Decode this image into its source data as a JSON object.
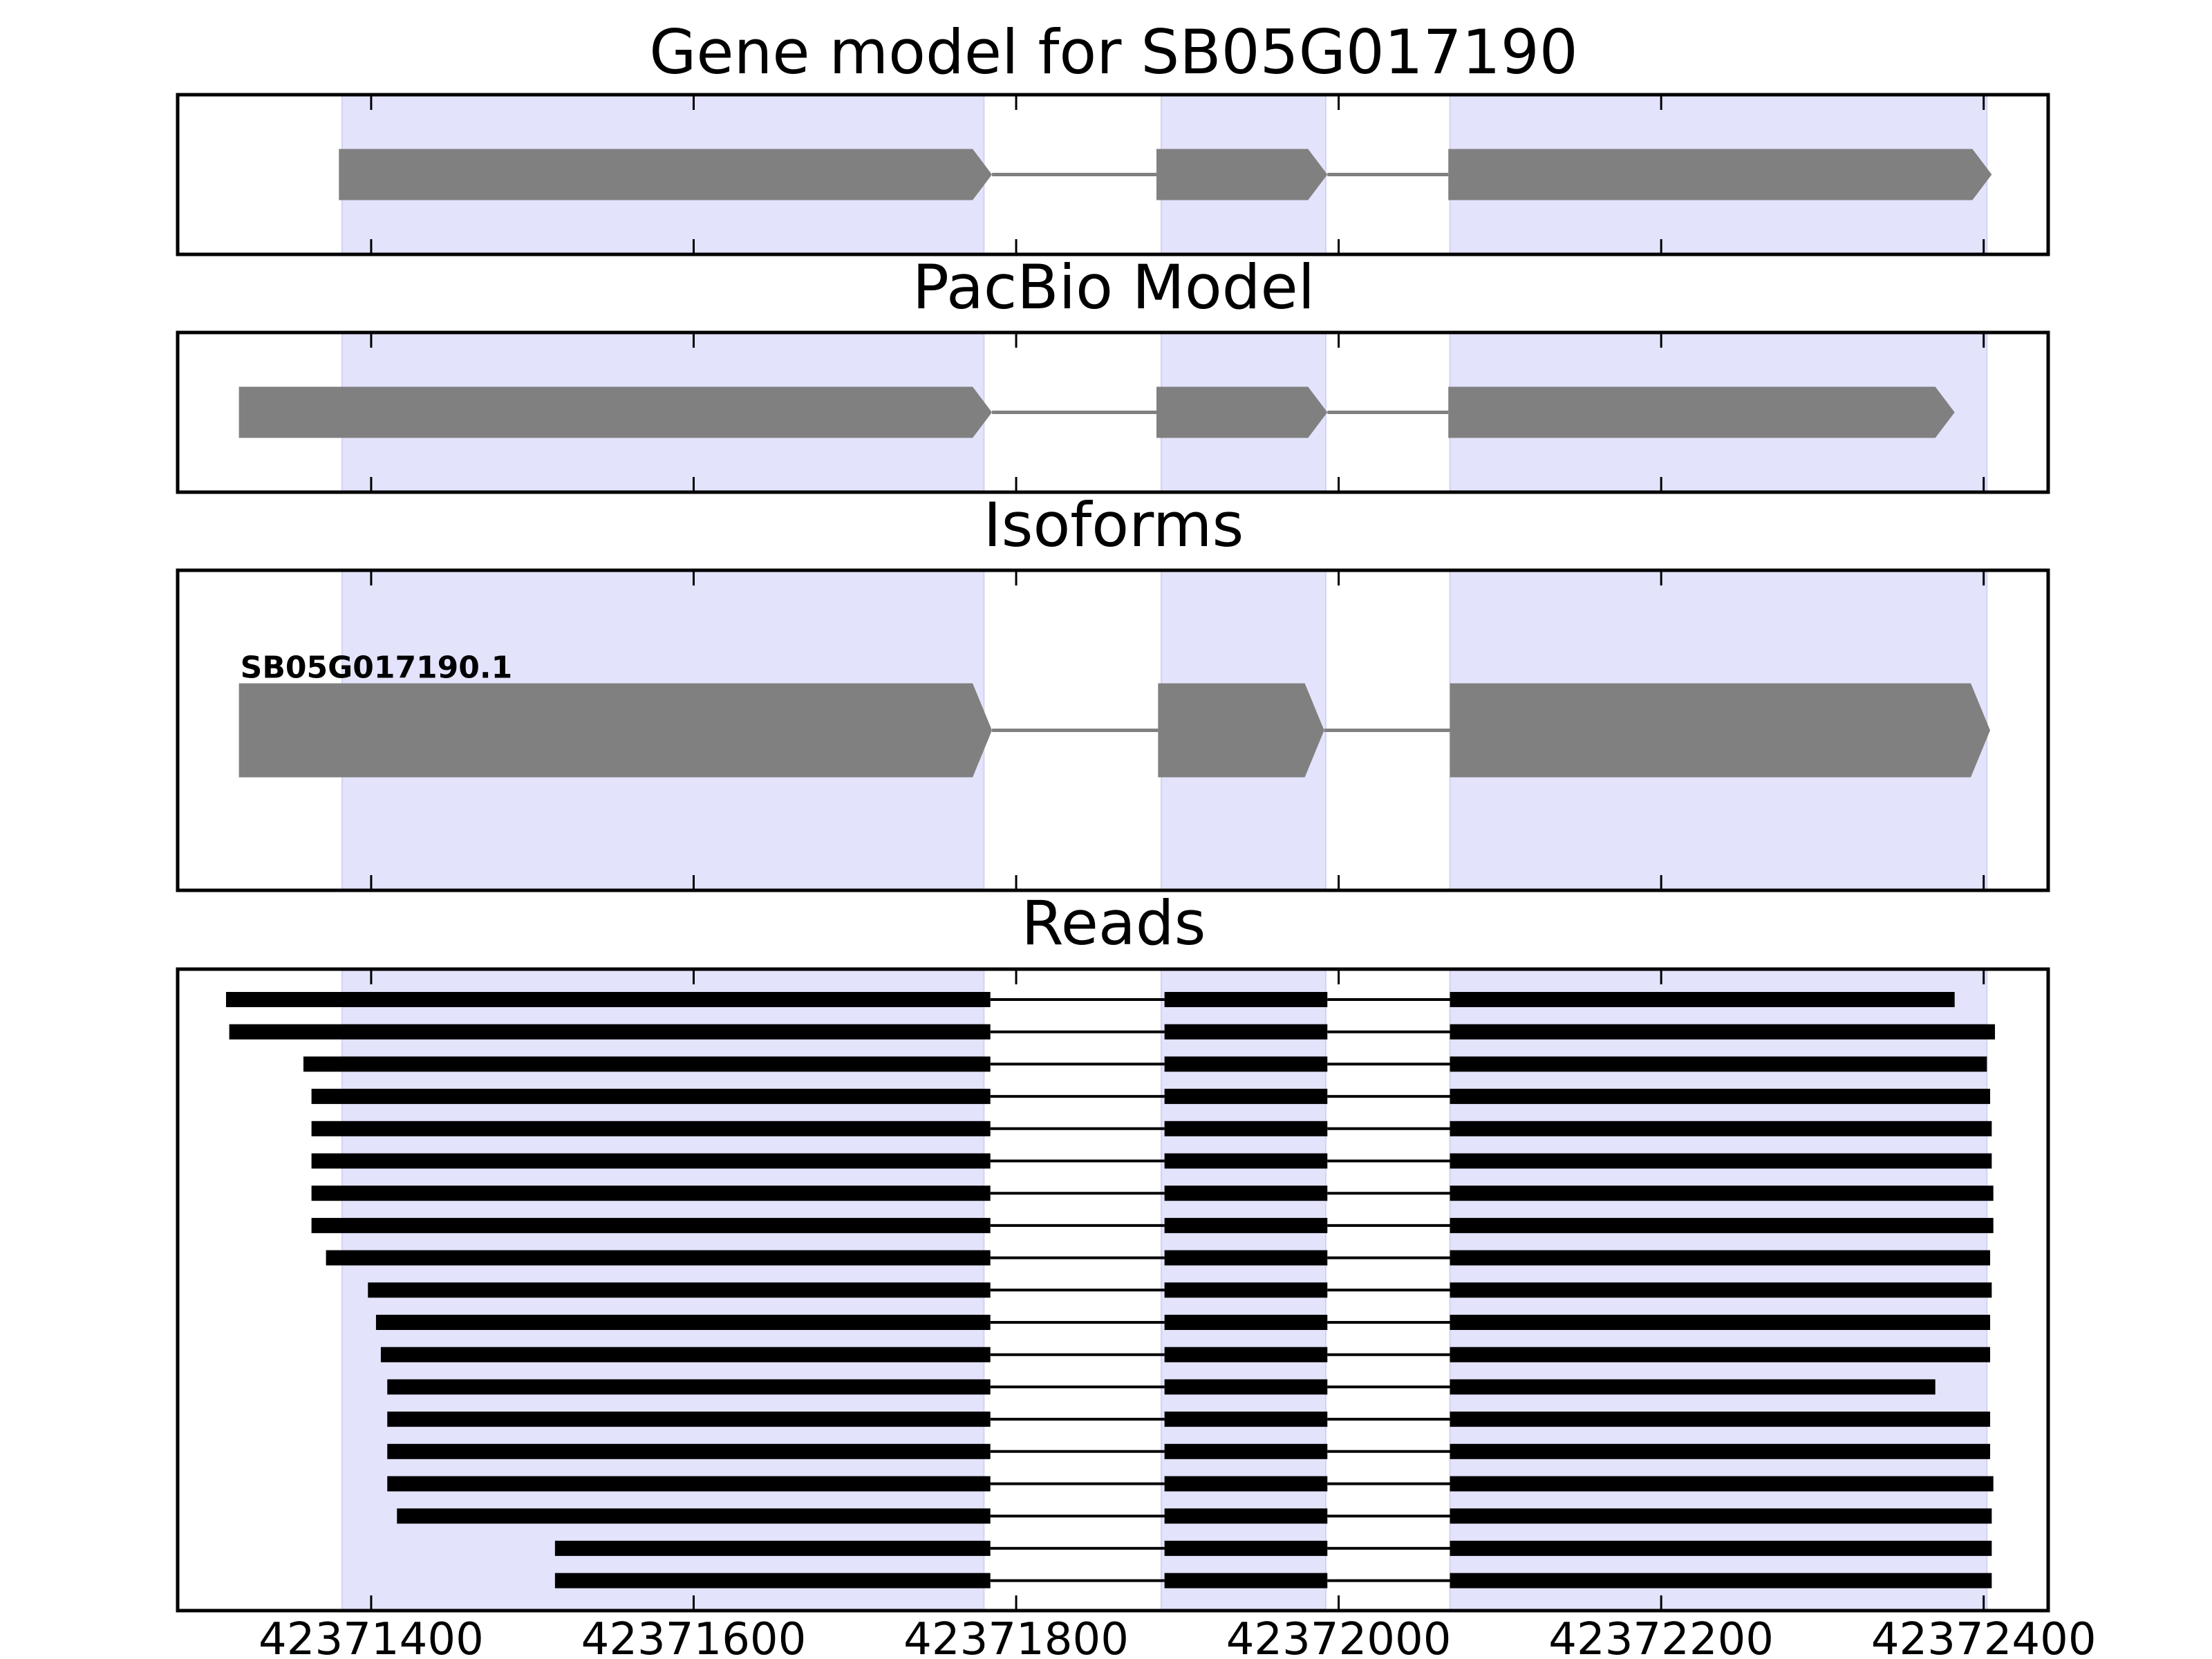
{
  "chart_data": {
    "type": "gene-model-track",
    "x_range": [
      42371280,
      42372440
    ],
    "x_ticks": [
      42371400,
      42371600,
      42371800,
      42372000,
      42372200,
      42372400
    ],
    "x_tick_labels": [
      "42371400",
      "42371600",
      "42371800",
      "42372000",
      "42372200",
      "42372400"
    ],
    "colors": {
      "exon_highlight": "#e3e3fc",
      "model_feature": "#808080",
      "read_feature": "#000000",
      "frame": "#000000"
    },
    "exon_highlights": [
      [
        42371382,
        42371780
      ],
      [
        42371890,
        42371992
      ],
      [
        42372069,
        42372402
      ]
    ],
    "panels": [
      {
        "title": "Gene model for SB05G017190",
        "features": [
          {
            "exons": [
              [
                42371380,
                42371785
              ],
              [
                42371887,
                42371993
              ],
              [
                42372068,
                42372405
              ]
            ],
            "strand": "+"
          }
        ]
      },
      {
        "title": "PacBio Model",
        "features": [
          {
            "exons": [
              [
                42371318,
                42371785
              ],
              [
                42371887,
                42371993
              ],
              [
                42372068,
                42372382
              ]
            ],
            "strand": "+"
          }
        ]
      },
      {
        "title": "Isoforms",
        "features": [
          {
            "name": "SB05G017190.1",
            "exons": [
              [
                42371318,
                42371785
              ],
              [
                42371888,
                42371991
              ],
              [
                42372069,
                42372404
              ]
            ],
            "strand": "+"
          }
        ]
      },
      {
        "title": "Reads",
        "features": [
          {
            "exons": [
              [
                42371310,
                42371784
              ],
              [
                42371892,
                42371993
              ],
              [
                42372069,
                42372382
              ]
            ]
          },
          {
            "exons": [
              [
                42371312,
                42371784
              ],
              [
                42371892,
                42371993
              ],
              [
                42372069,
                42372407
              ]
            ]
          },
          {
            "exons": [
              [
                42371358,
                42371784
              ],
              [
                42371892,
                42371993
              ],
              [
                42372069,
                42372402
              ]
            ]
          },
          {
            "exons": [
              [
                42371363,
                42371784
              ],
              [
                42371892,
                42371993
              ],
              [
                42372069,
                42372404
              ]
            ]
          },
          {
            "exons": [
              [
                42371363,
                42371784
              ],
              [
                42371892,
                42371993
              ],
              [
                42372069,
                42372405
              ]
            ]
          },
          {
            "exons": [
              [
                42371363,
                42371784
              ],
              [
                42371892,
                42371993
              ],
              [
                42372069,
                42372405
              ]
            ]
          },
          {
            "exons": [
              [
                42371363,
                42371784
              ],
              [
                42371892,
                42371993
              ],
              [
                42372069,
                42372406
              ]
            ]
          },
          {
            "exons": [
              [
                42371363,
                42371784
              ],
              [
                42371892,
                42371993
              ],
              [
                42372069,
                42372406
              ]
            ]
          },
          {
            "exons": [
              [
                42371372,
                42371784
              ],
              [
                42371892,
                42371993
              ],
              [
                42372069,
                42372404
              ]
            ]
          },
          {
            "exons": [
              [
                42371398,
                42371784
              ],
              [
                42371892,
                42371993
              ],
              [
                42372069,
                42372405
              ]
            ]
          },
          {
            "exons": [
              [
                42371403,
                42371784
              ],
              [
                42371892,
                42371993
              ],
              [
                42372069,
                42372404
              ]
            ]
          },
          {
            "exons": [
              [
                42371406,
                42371784
              ],
              [
                42371892,
                42371993
              ],
              [
                42372069,
                42372404
              ]
            ]
          },
          {
            "exons": [
              [
                42371410,
                42371784
              ],
              [
                42371892,
                42371993
              ],
              [
                42372069,
                42372370
              ]
            ]
          },
          {
            "exons": [
              [
                42371410,
                42371784
              ],
              [
                42371892,
                42371993
              ],
              [
                42372069,
                42372404
              ]
            ]
          },
          {
            "exons": [
              [
                42371410,
                42371784
              ],
              [
                42371892,
                42371993
              ],
              [
                42372069,
                42372404
              ]
            ]
          },
          {
            "exons": [
              [
                42371410,
                42371784
              ],
              [
                42371892,
                42371993
              ],
              [
                42372069,
                42372406
              ]
            ]
          },
          {
            "exons": [
              [
                42371416,
                42371784
              ],
              [
                42371892,
                42371993
              ],
              [
                42372069,
                42372405
              ]
            ]
          },
          {
            "exons": [
              [
                42371514,
                42371784
              ],
              [
                42371892,
                42371993
              ],
              [
                42372069,
                42372405
              ]
            ]
          },
          {
            "exons": [
              [
                42371514,
                42371784
              ],
              [
                42371892,
                42371993
              ],
              [
                42372069,
                42372405
              ]
            ]
          }
        ]
      }
    ]
  }
}
